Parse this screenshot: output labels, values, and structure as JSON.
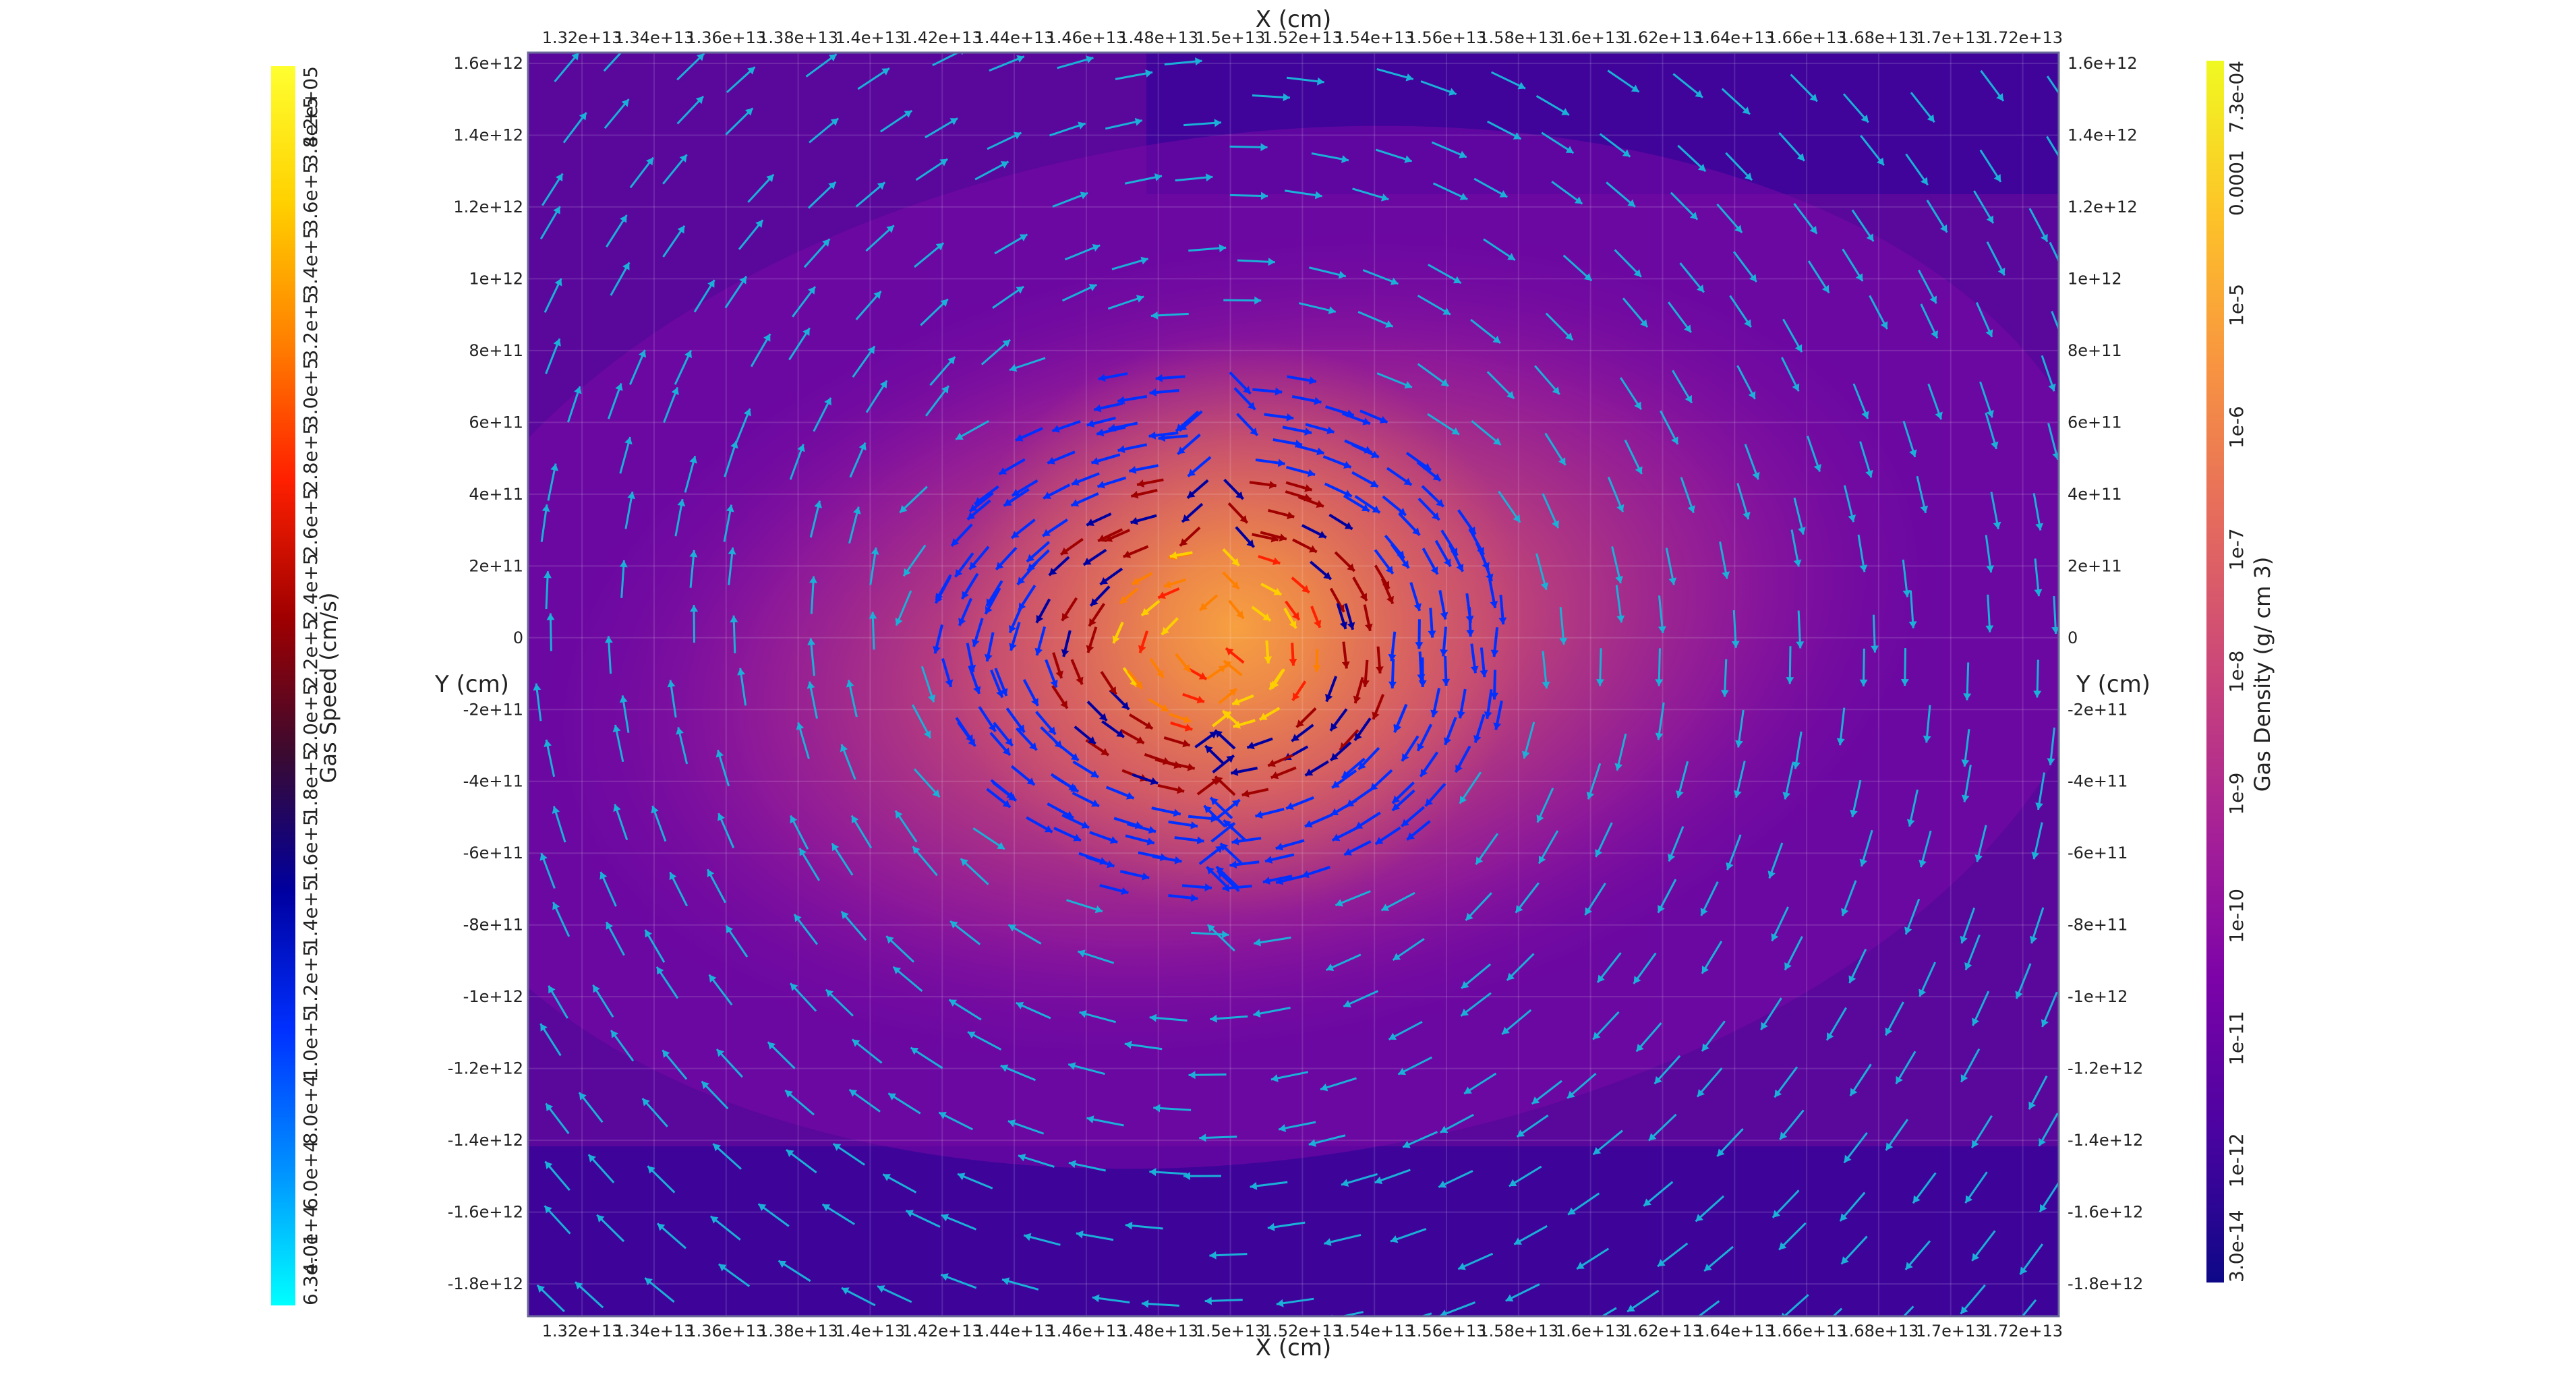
{
  "axes": {
    "x_title": "X (cm)",
    "y_title": "Y (cm)",
    "x_ticks": [
      "1.32e+13",
      "1.34e+13",
      "1.36e+13",
      "1.38e+13",
      "1.4e+13",
      "1.42e+13",
      "1.44e+13",
      "1.46e+13",
      "1.48e+13",
      "1.5e+13",
      "1.52e+13",
      "1.54e+13",
      "1.56e+13",
      "1.58e+13",
      "1.6e+13",
      "1.62e+13",
      "1.64e+13",
      "1.66e+13",
      "1.68e+13",
      "1.7e+13",
      "1.72e+13"
    ],
    "y_ticks": [
      "1.6e+12",
      "1.4e+12",
      "1.2e+12",
      "1e+12",
      "8e+11",
      "6e+11",
      "4e+11",
      "2e+11",
      "0",
      "-2e+11",
      "-4e+11",
      "-6e+11",
      "-8e+11",
      "-1e+12",
      "-1.2e+12",
      "-1.4e+12",
      "-1.6e+12",
      "-1.8e+12"
    ]
  },
  "colorbars": {
    "speed": {
      "title": "Gas Speed (cm/s)",
      "max_label": "4.2e+05",
      "min_label": "6.3e-01",
      "tick_labels": [
        "3.8e+5",
        "3.6e+5",
        "3.4e+5",
        "3.2e+5",
        "3.0e+5",
        "2.8e+5",
        "2.6e+5",
        "2.4e+5",
        "2.2e+5",
        "2.0e+5",
        "1.8e+5",
        "1.6e+5",
        "1.4e+5",
        "1.2e+5",
        "1.0e+5",
        "8.0e+4",
        "6.0e+4",
        "4.0e+4"
      ],
      "colormap": [
        "#00ffff",
        "#0090ff",
        "#0030ff",
        "#0000a0",
        "#3a0a30",
        "#a00000",
        "#ff2000",
        "#ff8000",
        "#ffd000",
        "#ffff30"
      ]
    },
    "density": {
      "title": "Gas Density (g/ cm 3)",
      "max_label": "7.3e-04",
      "min_label": "3.0e-14",
      "tick_labels": [
        "0.0001",
        "1e-5",
        "1e-6",
        "1e-7",
        "1e-8",
        "1e-9",
        "1e-10",
        "1e-11",
        "1e-12"
      ],
      "colormap": [
        "#0d0887",
        "#4b03a1",
        "#7d03a8",
        "#a82296",
        "#cb4679",
        "#e56b5d",
        "#f89441",
        "#fdc328",
        "#f0f921"
      ]
    }
  },
  "chart_data": {
    "type": "heatmap",
    "description_fields": "gas density field with gas velocity vectors",
    "x_range": [
      13050000000000.0,
      17300000000000.0
    ],
    "y_range": [
      -1890000000000.0,
      1630000000000.0
    ],
    "x_tick_values": [
      13200000000000.0,
      13400000000000.0,
      13600000000000.0,
      13800000000000.0,
      14000000000000.0,
      14200000000000.0,
      14400000000000.0,
      14600000000000.0,
      14800000000000.0,
      15000000000000.0,
      15200000000000.0,
      15400000000000.0,
      15600000000000.0,
      15800000000000.0,
      16000000000000.0,
      16200000000000.0,
      16400000000000.0,
      16600000000000.0,
      16800000000000.0,
      17000000000000.0,
      17200000000000.0
    ],
    "y_tick_values": [
      1600000000000.0,
      1400000000000.0,
      1200000000000.0,
      1000000000000.0,
      800000000000.0,
      600000000000.0,
      400000000000.0,
      200000000000.0,
      0,
      -200000000000.0,
      -400000000000.0,
      -600000000000.0,
      -800000000000.0,
      -1000000000000.0,
      -1200000000000.0,
      -1400000000000.0,
      -1600000000000.0,
      -1800000000000.0
    ],
    "density_log_range": [
      -13.5,
      -3.14
    ],
    "speed_range": [
      0.63,
      420000
    ],
    "center": [
      14970000000000.0,
      0
    ],
    "grid": true
  }
}
